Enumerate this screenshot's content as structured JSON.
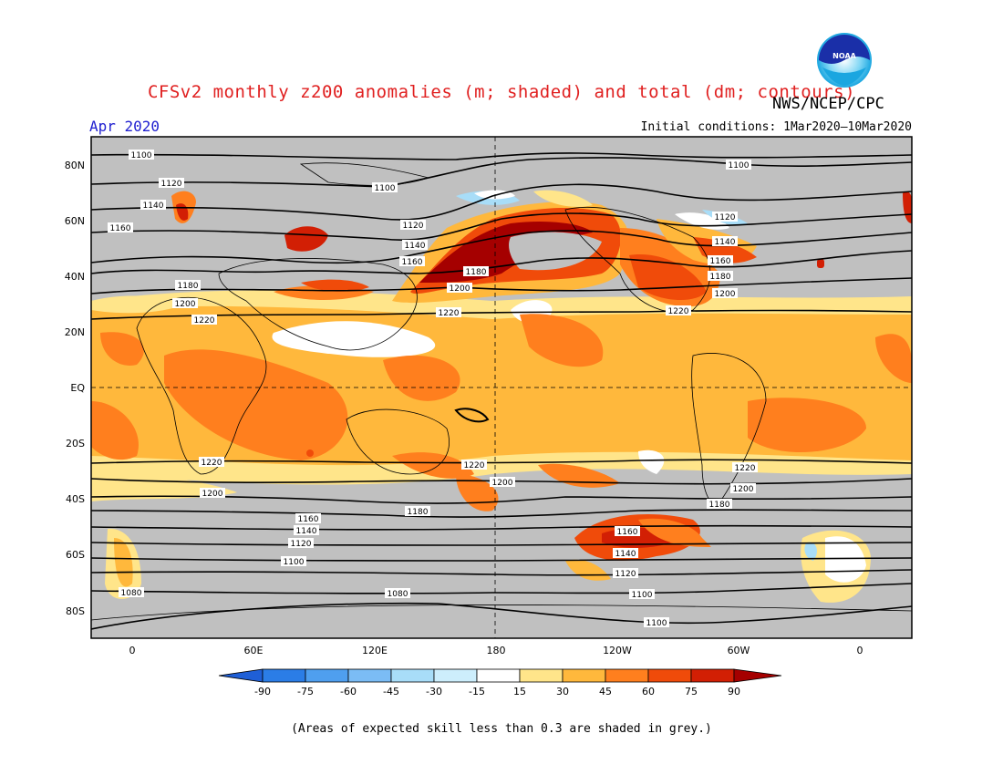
{
  "title": "CFSv2 monthly z200 anomalies (m; shaded) and total (dm; contours)",
  "agency": "NWS/NCEP/CPC",
  "logo_text": "NOAA",
  "month": "Apr 2020",
  "initial_conditions": "Initial conditions: 1Mar2020–10Mar2020",
  "skill_note": "(Areas of expected skill less than 0.3 are shaded in grey.)",
  "lat_labels": [
    "80N",
    "60N",
    "40N",
    "20N",
    "EQ",
    "20S",
    "40S",
    "60S",
    "80S"
  ],
  "lon_labels": [
    "0",
    "60E",
    "120E",
    "180",
    "120W",
    "60W",
    "0"
  ],
  "contour_labels": [
    "1100",
    "1100",
    "1100",
    "1120",
    "1140",
    "1160",
    "1180",
    "1200",
    "1220",
    "1120",
    "1140",
    "1160",
    "1180",
    "1200",
    "1220",
    "1120",
    "1140",
    "1160",
    "1180",
    "1200",
    "1220",
    "1220",
    "1200",
    "1220",
    "1200",
    "1180",
    "1220",
    "1200",
    "1180",
    "1160",
    "1140",
    "1120",
    "1100",
    "1160",
    "1140",
    "1120",
    "1100",
    "1080",
    "1100",
    "1080"
  ],
  "colorbar": {
    "labels": [
      "-90",
      "-75",
      "-60",
      "-45",
      "-30",
      "-15",
      "15",
      "30",
      "45",
      "60",
      "75",
      "90"
    ],
    "colors": [
      "#1f5fd6",
      "#2b7de6",
      "#4f9fef",
      "#7bbcf5",
      "#a8ddf8",
      "#cdeefc",
      "#ffffff",
      "#ffe58a",
      "#ffb83c",
      "#ff7f1e",
      "#f04b0a",
      "#d21f04",
      "#a50000"
    ]
  },
  "palette": {
    "skill_grey": "#c0c0c0",
    "title_red": "#e02020",
    "month_blue": "#2020d0"
  }
}
